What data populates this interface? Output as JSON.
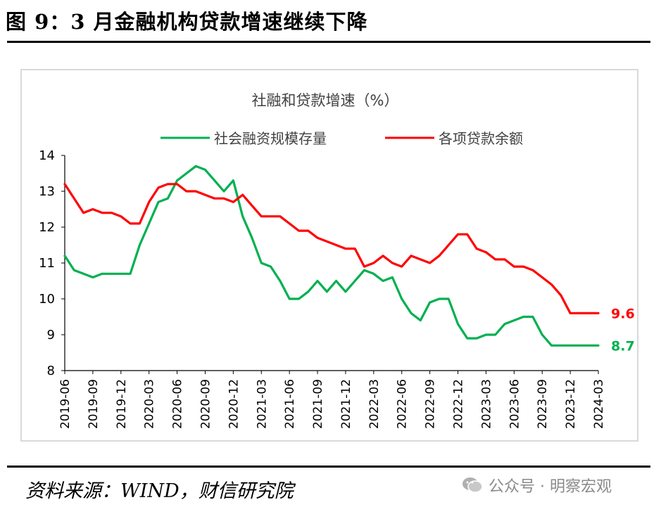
{
  "figure": {
    "title": "图 9：3 月金融机构贷款增速继续下降",
    "source": "资料来源：WIND，财信研究院",
    "watermark": "公众号 · 明察宏观"
  },
  "chart_data": {
    "type": "line",
    "title": "社融和贷款增速（%）",
    "ylim": [
      8,
      14
    ],
    "yticks": [
      8,
      9,
      10,
      11,
      12,
      13,
      14
    ],
    "grid": false,
    "legend_position": "top",
    "x_tick_labels": [
      "2019-06",
      "2019-09",
      "2019-12",
      "2020-03",
      "2020-06",
      "2020-09",
      "2020-12",
      "2021-03",
      "2021-06",
      "2021-09",
      "2021-12",
      "2022-03",
      "2022-06",
      "2022-09",
      "2022-12",
      "2023-03",
      "2023-06",
      "2023-09",
      "2023-12",
      "2024-03"
    ],
    "x": [
      "2019-06",
      "2019-07",
      "2019-08",
      "2019-09",
      "2019-10",
      "2019-11",
      "2019-12",
      "2020-01",
      "2020-02",
      "2020-03",
      "2020-04",
      "2020-05",
      "2020-06",
      "2020-07",
      "2020-08",
      "2020-09",
      "2020-10",
      "2020-11",
      "2020-12",
      "2021-01",
      "2021-02",
      "2021-03",
      "2021-04",
      "2021-05",
      "2021-06",
      "2021-07",
      "2021-08",
      "2021-09",
      "2021-10",
      "2021-11",
      "2021-12",
      "2022-01",
      "2022-02",
      "2022-03",
      "2022-04",
      "2022-05",
      "2022-06",
      "2022-07",
      "2022-08",
      "2022-09",
      "2022-10",
      "2022-11",
      "2022-12",
      "2023-01",
      "2023-02",
      "2023-03",
      "2023-04",
      "2023-05",
      "2023-06",
      "2023-07",
      "2023-08",
      "2023-09",
      "2023-10",
      "2023-11",
      "2023-12",
      "2024-01",
      "2024-02",
      "2024-03"
    ],
    "series": [
      {
        "name": "社会融资规模存量",
        "color": "#00b050",
        "values": [
          11.2,
          10.8,
          10.7,
          10.6,
          10.7,
          10.7,
          10.7,
          10.7,
          11.5,
          12.1,
          12.7,
          12.8,
          13.3,
          13.5,
          13.7,
          13.6,
          13.3,
          13.0,
          13.3,
          12.3,
          11.7,
          11.0,
          10.9,
          10.5,
          10.0,
          10.0,
          10.2,
          10.5,
          10.2,
          10.5,
          10.2,
          10.5,
          10.8,
          10.7,
          10.5,
          10.6,
          10.0,
          9.6,
          9.4,
          9.9,
          10.0,
          10.0,
          9.3,
          8.9,
          8.9,
          9.0,
          9.0,
          9.3,
          9.4,
          9.5,
          9.5,
          9.0,
          8.7,
          8.7,
          8.7,
          8.7,
          8.7,
          8.7
        ],
        "end_label": "8.7"
      },
      {
        "name": "各项贷款余额",
        "color": "#ff0000",
        "values": [
          13.2,
          12.8,
          12.4,
          12.5,
          12.4,
          12.4,
          12.3,
          12.1,
          12.1,
          12.7,
          13.1,
          13.2,
          13.2,
          13.0,
          13.0,
          12.9,
          12.8,
          12.8,
          12.7,
          12.9,
          12.6,
          12.3,
          12.3,
          12.3,
          12.1,
          11.9,
          11.9,
          11.7,
          11.6,
          11.5,
          11.4,
          11.4,
          10.9,
          11.0,
          11.2,
          11.0,
          10.9,
          11.2,
          11.1,
          11.0,
          11.2,
          11.5,
          11.8,
          11.8,
          11.4,
          11.3,
          11.1,
          11.1,
          10.9,
          10.9,
          10.8,
          10.6,
          10.4,
          10.1,
          9.6,
          9.6,
          9.6,
          9.6
        ],
        "end_label": "9.6"
      }
    ]
  }
}
